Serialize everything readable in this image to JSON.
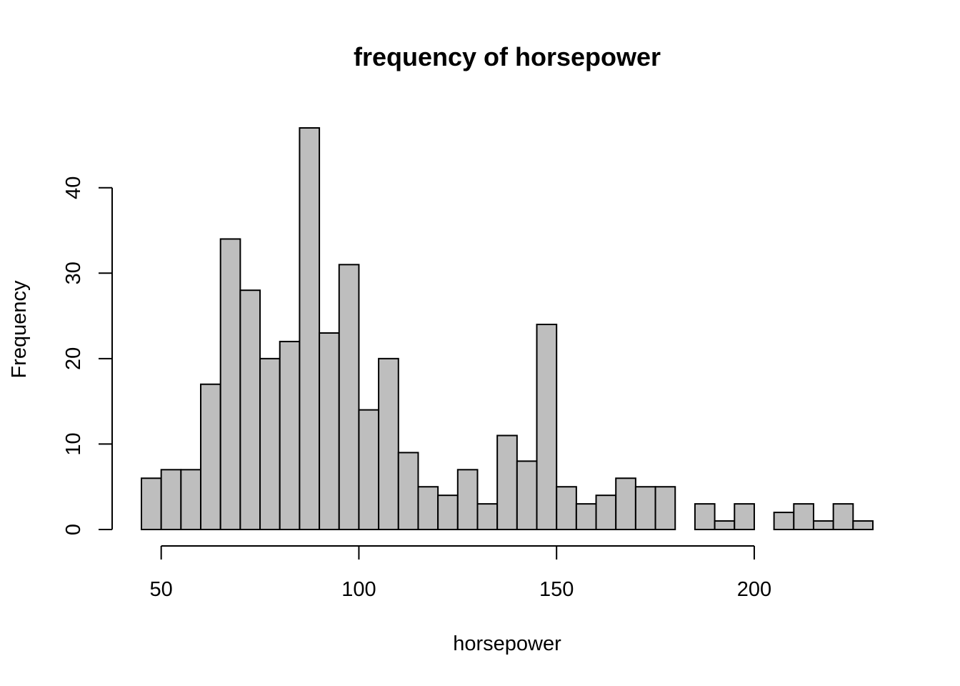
{
  "chart_data": {
    "type": "bar",
    "title": "frequency of horsepower",
    "xlabel": "horsepower",
    "ylabel": "Frequency",
    "bin_width": 5,
    "bins": [
      {
        "x0": 45,
        "x1": 50,
        "count": 6
      },
      {
        "x0": 50,
        "x1": 55,
        "count": 7
      },
      {
        "x0": 55,
        "x1": 60,
        "count": 7
      },
      {
        "x0": 60,
        "x1": 65,
        "count": 17
      },
      {
        "x0": 65,
        "x1": 70,
        "count": 34
      },
      {
        "x0": 70,
        "x1": 75,
        "count": 28
      },
      {
        "x0": 75,
        "x1": 80,
        "count": 20
      },
      {
        "x0": 80,
        "x1": 85,
        "count": 22
      },
      {
        "x0": 85,
        "x1": 90,
        "count": 47
      },
      {
        "x0": 90,
        "x1": 95,
        "count": 23
      },
      {
        "x0": 95,
        "x1": 100,
        "count": 31
      },
      {
        "x0": 100,
        "x1": 105,
        "count": 14
      },
      {
        "x0": 105,
        "x1": 110,
        "count": 20
      },
      {
        "x0": 110,
        "x1": 115,
        "count": 9
      },
      {
        "x0": 115,
        "x1": 120,
        "count": 5
      },
      {
        "x0": 120,
        "x1": 125,
        "count": 4
      },
      {
        "x0": 125,
        "x1": 130,
        "count": 7
      },
      {
        "x0": 130,
        "x1": 135,
        "count": 3
      },
      {
        "x0": 135,
        "x1": 140,
        "count": 11
      },
      {
        "x0": 140,
        "x1": 145,
        "count": 8
      },
      {
        "x0": 145,
        "x1": 150,
        "count": 24
      },
      {
        "x0": 150,
        "x1": 155,
        "count": 5
      },
      {
        "x0": 155,
        "x1": 160,
        "count": 3
      },
      {
        "x0": 160,
        "x1": 165,
        "count": 4
      },
      {
        "x0": 165,
        "x1": 170,
        "count": 6
      },
      {
        "x0": 170,
        "x1": 175,
        "count": 5
      },
      {
        "x0": 175,
        "x1": 180,
        "count": 5
      },
      {
        "x0": 180,
        "x1": 185,
        "count": 0
      },
      {
        "x0": 185,
        "x1": 190,
        "count": 3
      },
      {
        "x0": 190,
        "x1": 195,
        "count": 1
      },
      {
        "x0": 195,
        "x1": 200,
        "count": 3
      },
      {
        "x0": 200,
        "x1": 205,
        "count": 0
      },
      {
        "x0": 205,
        "x1": 210,
        "count": 2
      },
      {
        "x0": 210,
        "x1": 215,
        "count": 3
      },
      {
        "x0": 215,
        "x1": 220,
        "count": 1
      },
      {
        "x0": 220,
        "x1": 225,
        "count": 3
      },
      {
        "x0": 225,
        "x1": 230,
        "count": 1
      }
    ],
    "x_ticks": [
      50,
      100,
      150,
      200
    ],
    "y_ticks": [
      0,
      10,
      20,
      30,
      40
    ],
    "xlim": [
      45,
      230
    ],
    "ylim": [
      0,
      47
    ],
    "x_axis_range": [
      50,
      200
    ],
    "y_axis_range": [
      0,
      40
    ],
    "grid": false,
    "legend": "none",
    "bar_fill": "#bebebe",
    "bar_stroke": "#000000"
  }
}
